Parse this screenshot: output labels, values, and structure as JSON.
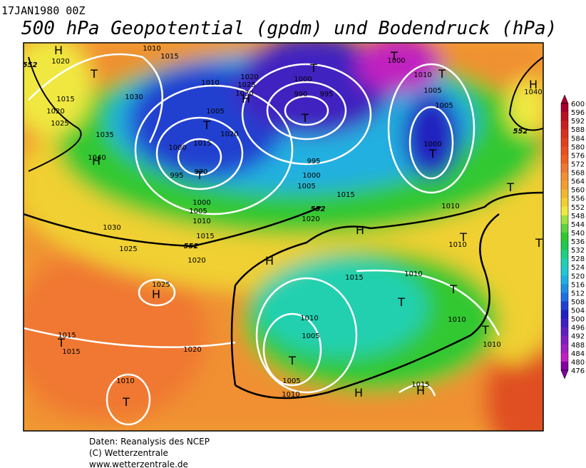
{
  "header": {
    "date": "17JAN1980 00Z",
    "title": "500 hPa Geopotential (gpdm) und Bodendruck (hPa)"
  },
  "map": {
    "labels": [
      "1020",
      "1015",
      "1010",
      "1030",
      "1035",
      "1040",
      "1015",
      "1020",
      "1025",
      "1010",
      "1005",
      "1020",
      "1015",
      "1000",
      "995",
      "970",
      "1025",
      "1030",
      "1020",
      "1000",
      "990",
      "995",
      "995",
      "1000",
      "1005",
      "1015",
      "1010",
      "1000",
      "1005",
      "1010",
      "1000",
      "1005",
      "1040",
      "1000",
      "1005",
      "1010",
      "1015",
      "1020",
      "1030",
      "1025",
      "1020",
      "1025",
      "1015",
      "1015",
      "1020",
      "1010",
      "1015",
      "1010",
      "1010",
      "1005",
      "1005",
      "1010",
      "1010",
      "1010",
      "1015",
      "1010",
      "552",
      "552",
      "552",
      "552"
    ],
    "centers": [
      "H",
      "T",
      "H",
      "T",
      "T",
      "H",
      "T",
      "T",
      "T",
      "T",
      "T",
      "H",
      "T",
      "H",
      "T",
      "H",
      "H",
      "T",
      "T",
      "T",
      "T",
      "T",
      "T",
      "H",
      "H",
      "T"
    ]
  },
  "colorbar": {
    "labels": [
      600,
      596,
      592,
      588,
      584,
      580,
      576,
      572,
      568,
      564,
      560,
      556,
      552,
      548,
      544,
      540,
      536,
      532,
      528,
      524,
      520,
      516,
      512,
      508,
      504,
      500,
      496,
      492,
      488,
      484,
      480,
      476
    ],
    "colors": [
      "#a8002c",
      "#b81020",
      "#c82020",
      "#d83020",
      "#e04020",
      "#e85020",
      "#f06020",
      "#f07830",
      "#f09030",
      "#f0a030",
      "#f0b830",
      "#f0d030",
      "#f0e840",
      "#a0e040",
      "#60d040",
      "#30c830",
      "#20c850",
      "#20d080",
      "#20d0b0",
      "#20c8d0",
      "#20b0e0",
      "#2090e0",
      "#2070e0",
      "#2040d0",
      "#2020c0",
      "#4020c0",
      "#6020c0",
      "#8020c0",
      "#a020c0",
      "#c020c0",
      "#8000a0"
    ]
  },
  "footer": [
    "Daten: Reanalysis des NCEP",
    "(C) Wetterzentrale",
    "www.wetterzentrale.de"
  ]
}
